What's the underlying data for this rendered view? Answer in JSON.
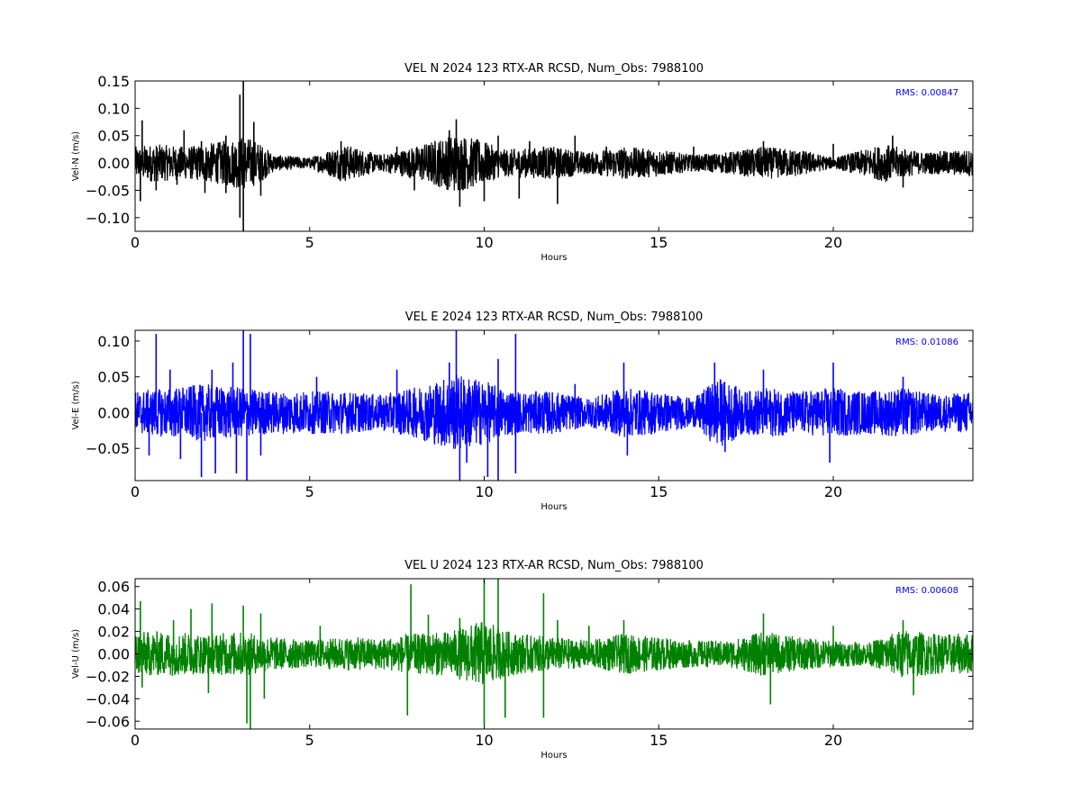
{
  "chart_data": [
    {
      "type": "line",
      "title": "VEL N 2024 123 RTX-AR  RCSD, Num_Obs: 7988100",
      "xlabel": "Hours",
      "ylabel": "Vel-N (m/s)",
      "xlim": [
        0,
        24
      ],
      "ylim": [
        -0.125,
        0.15
      ],
      "xticks": [
        0,
        5,
        10,
        15,
        20
      ],
      "xtick_labels": [
        "0",
        "5",
        "10",
        "15",
        "20"
      ],
      "yticks": [
        -0.1,
        -0.05,
        0.0,
        0.05,
        0.1,
        0.15
      ],
      "ytick_labels": [
        "−0.10",
        "−0.05",
        "0.00",
        "0.05",
        "0.10",
        "0.15"
      ],
      "color": "#000000",
      "annotation": "RMS:  0.00847",
      "annotation_color": "#0000ff",
      "envelope": [
        [
          0,
          0.03
        ],
        [
          0.5,
          0.035
        ],
        [
          1.5,
          0.03
        ],
        [
          2.5,
          0.04
        ],
        [
          3.1,
          0.05
        ],
        [
          3.5,
          0.04
        ],
        [
          4,
          0.015
        ],
        [
          5,
          0.01
        ],
        [
          6,
          0.035
        ],
        [
          7,
          0.015
        ],
        [
          8,
          0.03
        ],
        [
          9.2,
          0.055
        ],
        [
          10,
          0.04
        ],
        [
          10.5,
          0.025
        ],
        [
          12,
          0.03
        ],
        [
          13,
          0.02
        ],
        [
          14,
          0.03
        ],
        [
          15,
          0.025
        ],
        [
          16,
          0.015
        ],
        [
          17,
          0.02
        ],
        [
          18,
          0.03
        ],
        [
          19,
          0.025
        ],
        [
          20,
          0.01
        ],
        [
          21.5,
          0.035
        ],
        [
          22.5,
          0.02
        ],
        [
          24,
          0.025
        ]
      ],
      "spikes": [
        [
          0.2,
          0.078
        ],
        [
          0.15,
          -0.07
        ],
        [
          0.6,
          -0.05
        ],
        [
          1.4,
          0.06
        ],
        [
          1.2,
          -0.04
        ],
        [
          1.9,
          0.04
        ],
        [
          2.0,
          -0.055
        ],
        [
          2.6,
          0.05
        ],
        [
          2.6,
          -0.055
        ],
        [
          3.0,
          0.125
        ],
        [
          3.0,
          -0.1
        ],
        [
          3.1,
          0.15
        ],
        [
          3.1,
          -0.125
        ],
        [
          3.4,
          0.075
        ],
        [
          3.6,
          -0.06
        ],
        [
          5.9,
          0.04
        ],
        [
          7.5,
          0.03
        ],
        [
          8.0,
          -0.05
        ],
        [
          9.0,
          0.06
        ],
        [
          9.2,
          0.08
        ],
        [
          9.3,
          -0.08
        ],
        [
          10.0,
          -0.07
        ],
        [
          10.4,
          0.05
        ],
        [
          11.0,
          -0.065
        ],
        [
          11.3,
          0.04
        ],
        [
          11.7,
          0.03
        ],
        [
          12.1,
          -0.075
        ],
        [
          12.6,
          0.05
        ],
        [
          13.5,
          0.03
        ],
        [
          16.0,
          0.03
        ],
        [
          18.0,
          0.04
        ],
        [
          20.0,
          0.035
        ],
        [
          21.7,
          0.05
        ],
        [
          22.0,
          -0.045
        ]
      ]
    },
    {
      "type": "line",
      "title": "VEL E 2024 123 RTX-AR  RCSD, Num_Obs: 7988100",
      "xlabel": "Hours",
      "ylabel": "Vel-E (m/s)",
      "xlim": [
        0,
        24
      ],
      "ylim": [
        -0.095,
        0.115
      ],
      "xticks": [
        0,
        5,
        10,
        15,
        20
      ],
      "xtick_labels": [
        "0",
        "5",
        "10",
        "15",
        "20"
      ],
      "yticks": [
        -0.05,
        0.0,
        0.05,
        0.1
      ],
      "ytick_labels": [
        "−0.05",
        "0.00",
        "0.05",
        "0.10"
      ],
      "color": "#0000ff",
      "annotation": "RMS:  0.01086",
      "annotation_color": "#0000ff",
      "envelope": [
        [
          0,
          0.03
        ],
        [
          1,
          0.035
        ],
        [
          2,
          0.04
        ],
        [
          3,
          0.035
        ],
        [
          4,
          0.03
        ],
        [
          5,
          0.03
        ],
        [
          6,
          0.03
        ],
        [
          7,
          0.025
        ],
        [
          8,
          0.035
        ],
        [
          9.2,
          0.055
        ],
        [
          10,
          0.045
        ],
        [
          10.5,
          0.035
        ],
        [
          11,
          0.03
        ],
        [
          12,
          0.03
        ],
        [
          13,
          0.02
        ],
        [
          14,
          0.035
        ],
        [
          15,
          0.03
        ],
        [
          16,
          0.02
        ],
        [
          16.7,
          0.05
        ],
        [
          17.5,
          0.03
        ],
        [
          18,
          0.035
        ],
        [
          19,
          0.03
        ],
        [
          20,
          0.035
        ],
        [
          21,
          0.03
        ],
        [
          22,
          0.035
        ],
        [
          23,
          0.025
        ],
        [
          24,
          0.03
        ]
      ],
      "spikes": [
        [
          0.6,
          0.11
        ],
        [
          0.4,
          -0.06
        ],
        [
          1.0,
          0.06
        ],
        [
          1.3,
          -0.065
        ],
        [
          1.9,
          -0.09
        ],
        [
          2.2,
          0.06
        ],
        [
          2.3,
          -0.085
        ],
        [
          2.8,
          0.07
        ],
        [
          2.9,
          -0.085
        ],
        [
          3.1,
          0.115
        ],
        [
          3.2,
          -0.095
        ],
        [
          3.3,
          0.11
        ],
        [
          3.6,
          -0.06
        ],
        [
          5.2,
          0.05
        ],
        [
          7.5,
          0.06
        ],
        [
          9.0,
          0.07
        ],
        [
          9.2,
          0.115
        ],
        [
          9.3,
          -0.095
        ],
        [
          9.5,
          -0.07
        ],
        [
          10.1,
          -0.09
        ],
        [
          10.4,
          0.075
        ],
        [
          10.4,
          -0.095
        ],
        [
          10.9,
          0.11
        ],
        [
          10.9,
          -0.085
        ],
        [
          12.6,
          0.04
        ],
        [
          14.0,
          0.07
        ],
        [
          14.1,
          -0.06
        ],
        [
          16.6,
          0.07
        ],
        [
          16.9,
          -0.055
        ],
        [
          18.0,
          0.06
        ],
        [
          20.0,
          0.07
        ],
        [
          19.9,
          -0.07
        ],
        [
          22.0,
          0.05
        ]
      ]
    },
    {
      "type": "line",
      "title": "VEL U 2024 123 RTX-AR  RCSD, Num_Obs: 7988100",
      "xlabel": "Hours",
      "ylabel": "Vel-U (m/s)",
      "xlim": [
        0,
        24
      ],
      "ylim": [
        -0.067,
        0.067
      ],
      "xticks": [
        0,
        5,
        10,
        15,
        20
      ],
      "xtick_labels": [
        "0",
        "5",
        "10",
        "15",
        "20"
      ],
      "yticks": [
        -0.06,
        -0.04,
        -0.02,
        0.0,
        0.02,
        0.04,
        0.06
      ],
      "ytick_labels": [
        "−0.06",
        "−0.04",
        "−0.02",
        "0.00",
        "0.02",
        "0.04",
        "0.06"
      ],
      "color": "#008000",
      "annotation": "RMS:  0.00608",
      "annotation_color": "#0000ff",
      "envelope": [
        [
          0,
          0.02
        ],
        [
          1,
          0.02
        ],
        [
          2,
          0.018
        ],
        [
          3,
          0.02
        ],
        [
          4,
          0.015
        ],
        [
          5,
          0.012
        ],
        [
          6,
          0.015
        ],
        [
          7,
          0.014
        ],
        [
          8,
          0.018
        ],
        [
          9,
          0.02
        ],
        [
          10,
          0.03
        ],
        [
          10.5,
          0.022
        ],
        [
          11,
          0.018
        ],
        [
          12,
          0.015
        ],
        [
          13,
          0.012
        ],
        [
          14,
          0.018
        ],
        [
          15,
          0.015
        ],
        [
          16,
          0.012
        ],
        [
          17,
          0.012
        ],
        [
          18,
          0.02
        ],
        [
          19,
          0.015
        ],
        [
          20,
          0.012
        ],
        [
          21,
          0.01
        ],
        [
          22,
          0.022
        ],
        [
          23,
          0.018
        ],
        [
          24,
          0.018
        ]
      ],
      "spikes": [
        [
          0.15,
          0.047
        ],
        [
          0.2,
          -0.03
        ],
        [
          1.1,
          0.03
        ],
        [
          1.6,
          0.04
        ],
        [
          2.1,
          -0.035
        ],
        [
          2.2,
          0.045
        ],
        [
          3.1,
          0.043
        ],
        [
          3.2,
          -0.062
        ],
        [
          3.3,
          -0.067
        ],
        [
          3.6,
          0.036
        ],
        [
          3.7,
          -0.04
        ],
        [
          5.3,
          0.025
        ],
        [
          7.9,
          0.062
        ],
        [
          7.8,
          -0.055
        ],
        [
          8.4,
          0.035
        ],
        [
          9.3,
          0.032
        ],
        [
          10.0,
          -0.063
        ],
        [
          10.0,
          0.067
        ],
        [
          10.4,
          0.067
        ],
        [
          10.6,
          -0.057
        ],
        [
          11.7,
          0.054
        ],
        [
          11.7,
          -0.057
        ],
        [
          12.1,
          0.03
        ],
        [
          13.0,
          0.025
        ],
        [
          14.0,
          0.03
        ],
        [
          18.0,
          0.036
        ],
        [
          18.2,
          -0.045
        ],
        [
          20.0,
          0.025
        ],
        [
          22.0,
          0.03
        ],
        [
          22.3,
          -0.037
        ]
      ]
    }
  ]
}
